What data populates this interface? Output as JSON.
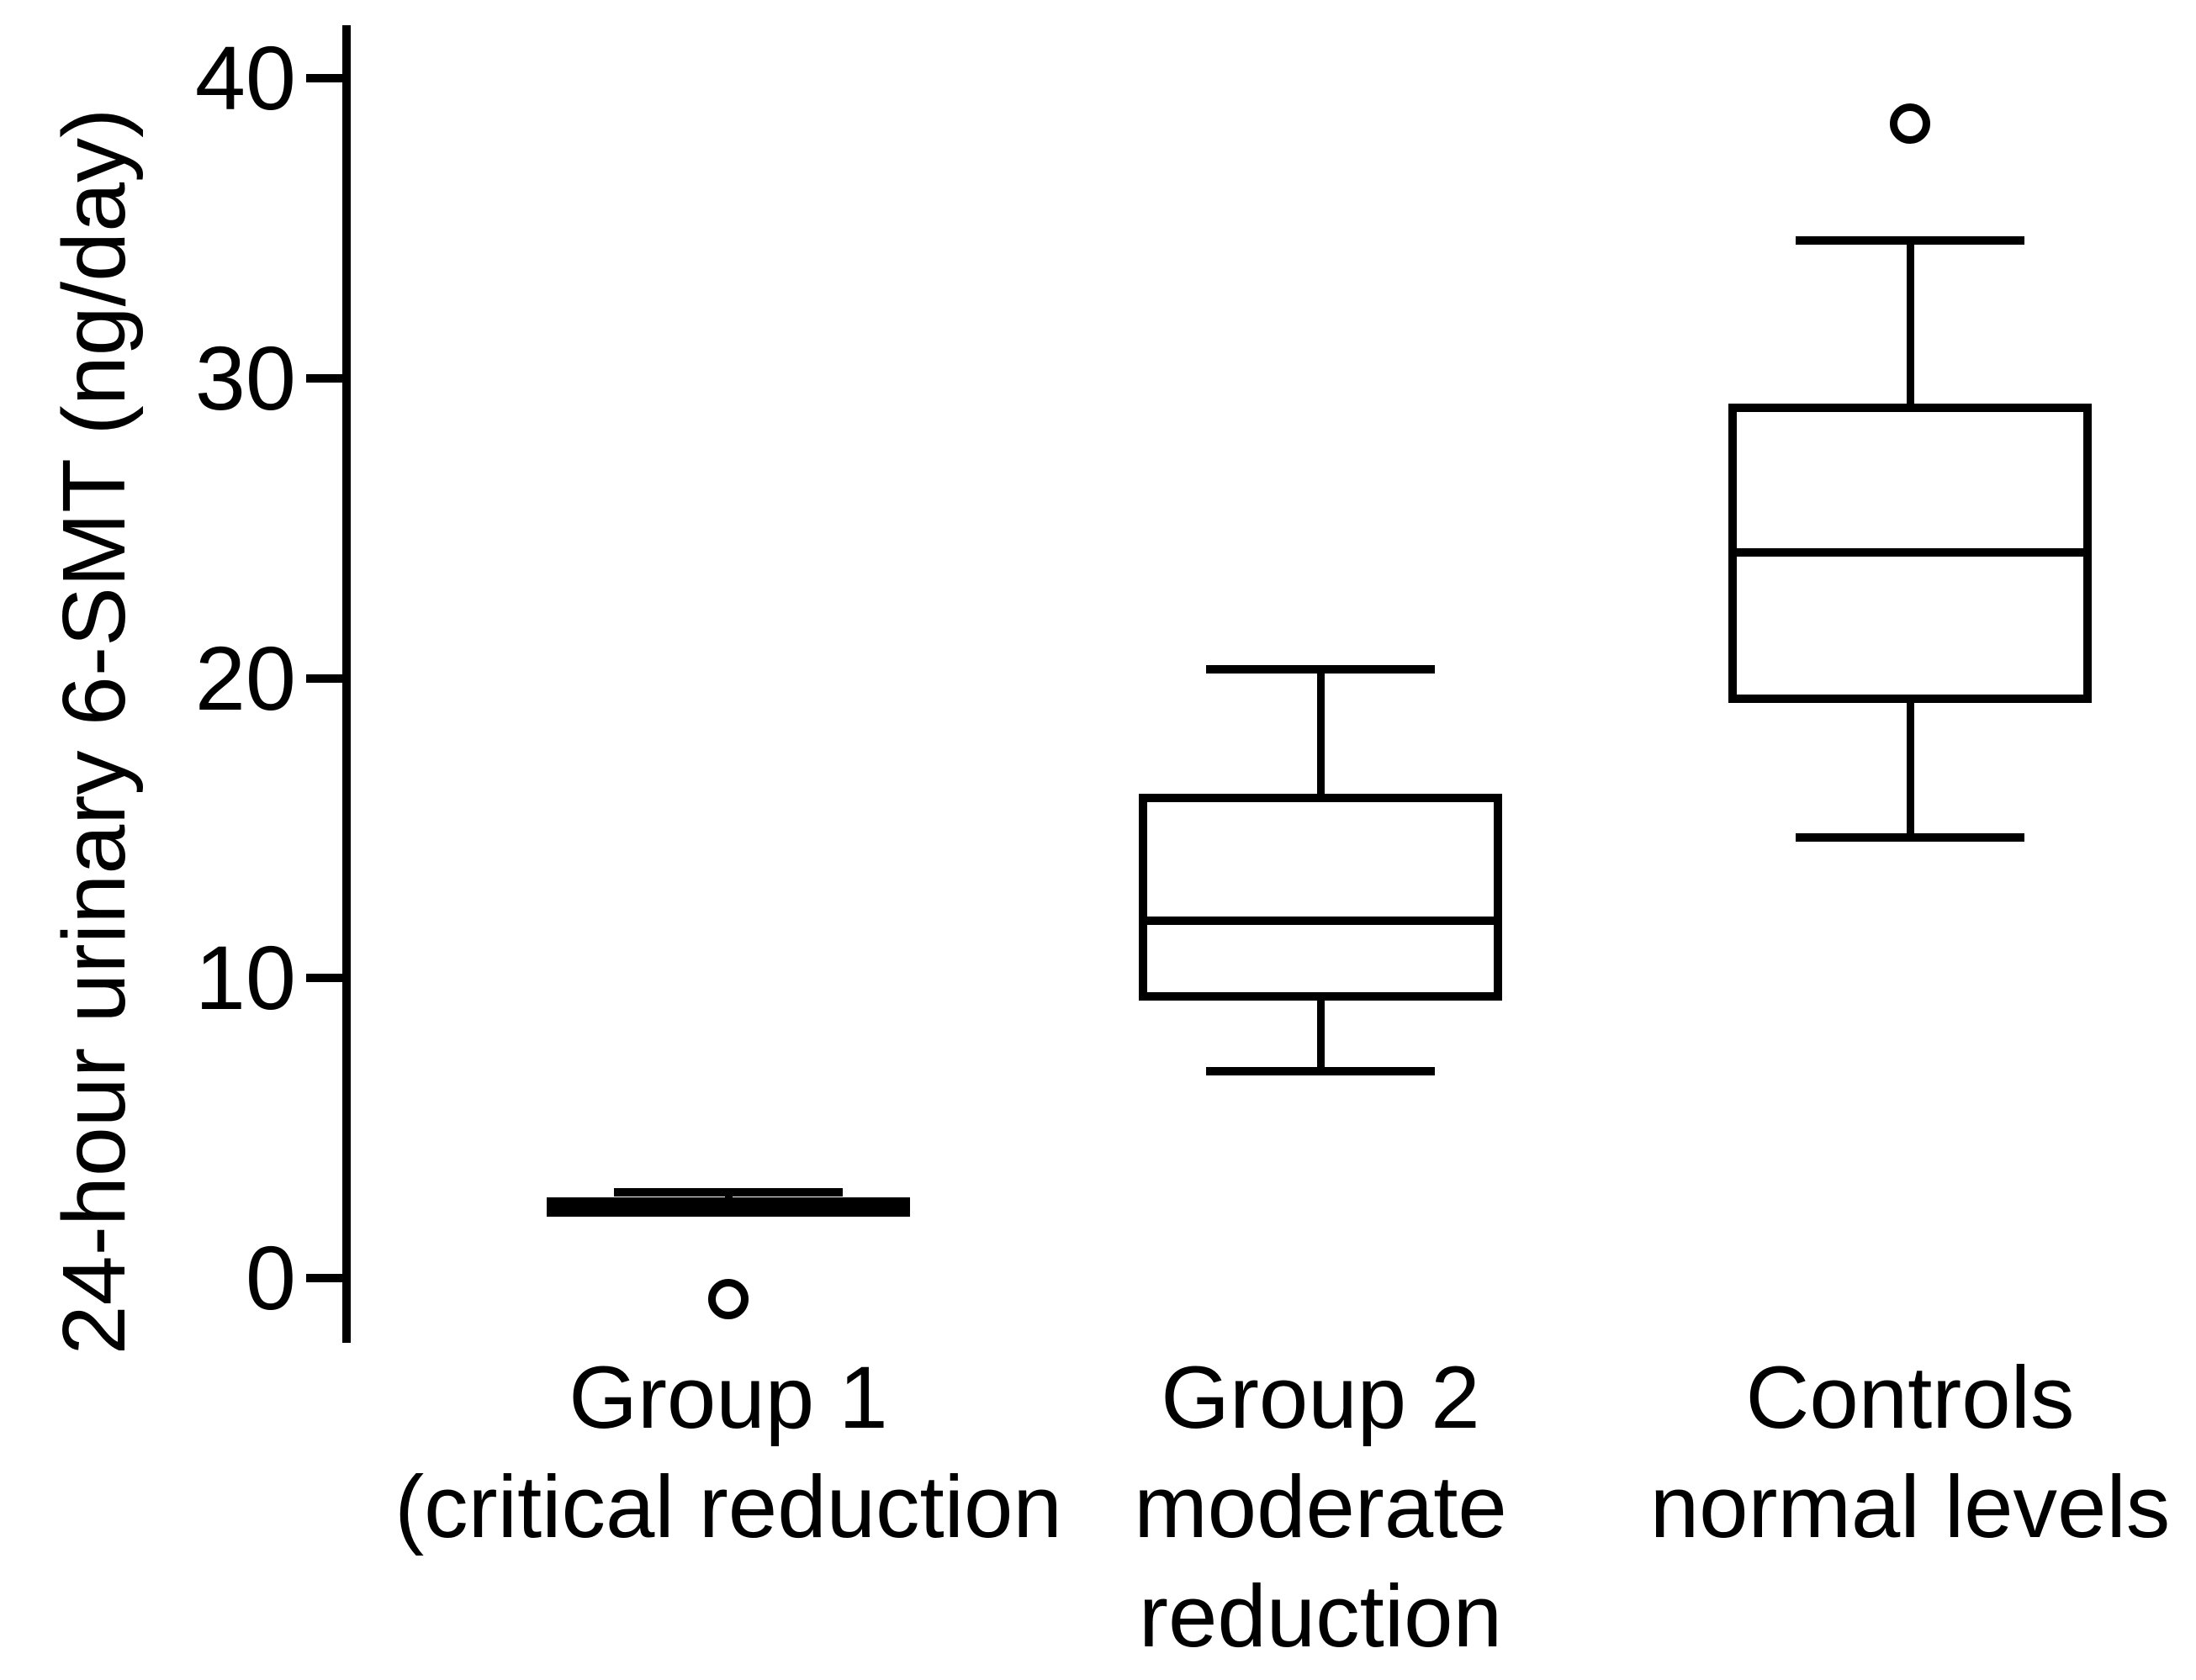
{
  "figure_title": "",
  "colors": {
    "ink": "#000000",
    "background": "#ffffff"
  },
  "y_axis": {
    "title": "24-hour urinary 6-SMT (ng/day)",
    "tick_values": [
      0,
      10,
      20,
      30,
      40
    ],
    "tick_labels": [
      "0",
      "10",
      "20",
      "30",
      "40"
    ],
    "range": [
      -2.2,
      41.8
    ]
  },
  "x_axis": {
    "categories": [
      {
        "lines": [
          "Group 1",
          "(critical reduction"
        ]
      },
      {
        "lines": [
          "Group 2",
          "moderate",
          "reduction"
        ]
      },
      {
        "lines": [
          "Controls",
          "normal levels"
        ]
      }
    ]
  },
  "chart_data": {
    "type": "boxplot",
    "title": "",
    "xlabel": "",
    "ylabel": "24-hour urinary 6-SMT (ng/day)",
    "ylim": [
      -2.2,
      41.8
    ],
    "yticks": [
      0,
      10,
      20,
      30,
      40
    ],
    "grid": false,
    "categories": [
      "Group 1 (critical reduction",
      "Group 2 moderate reduction",
      "Controls normal levels"
    ],
    "series": [
      {
        "name": "Group 1 (critical reduction",
        "whisker_low": 2.2,
        "q1": 2.2,
        "median": 2.4,
        "q3": 2.55,
        "whisker_high": 2.85,
        "outliers": [
          -0.7
        ]
      },
      {
        "name": "Group 2 moderate reduction",
        "whisker_low": 6.9,
        "q1": 9.4,
        "median": 11.9,
        "q3": 16.0,
        "whisker_high": 20.3,
        "outliers": []
      },
      {
        "name": "Controls normal levels",
        "whisker_low": 14.7,
        "q1": 19.3,
        "median": 24.2,
        "q3": 29.0,
        "whisker_high": 34.6,
        "outliers": [
          38.5
        ]
      }
    ]
  }
}
